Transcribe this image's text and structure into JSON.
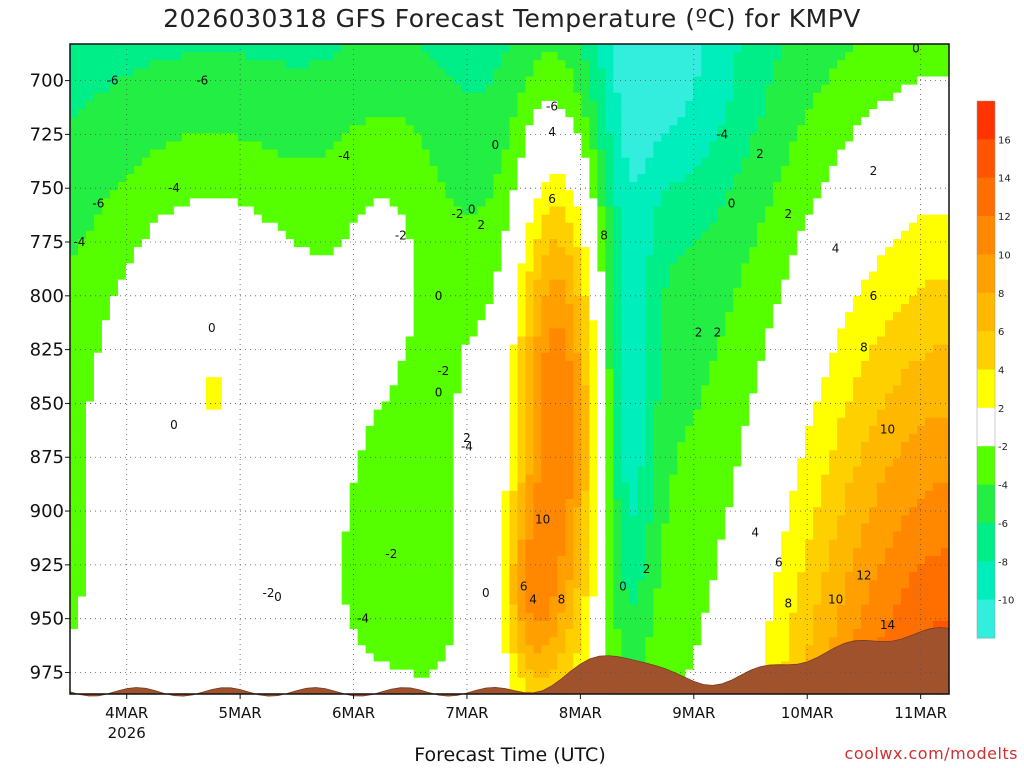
{
  "header": {
    "title": "2026030318 GFS Forecast Temperature (ºC) for KMPV",
    "credit": "coolwx.com/modelts"
  },
  "chart_data": {
    "type": "heatmap",
    "title": "2026030318 GFS Forecast Temperature (ºC) for KMPV",
    "xlabel": "Forecast Time (UTC)",
    "ylabel": "",
    "y_axis": {
      "unit": "hPa",
      "ticks": [
        700,
        725,
        750,
        775,
        800,
        825,
        850,
        875,
        900,
        925,
        950,
        975
      ],
      "range": [
        683,
        985
      ],
      "inverted": true
    },
    "x_axis": {
      "ticks": [
        "4MAR",
        "5MAR",
        "6MAR",
        "7MAR",
        "8MAR",
        "9MAR",
        "10MAR",
        "11MAR"
      ],
      "sublabel": "2026",
      "range_hours": [
        0,
        186
      ]
    },
    "grid": true,
    "colorbar": {
      "position": "right",
      "labels": [
        "16",
        "14",
        "12",
        "10",
        "8",
        "6",
        "4",
        "2",
        "-2",
        "-4",
        "-6",
        "-8",
        "-10"
      ],
      "bands": [
        {
          "min": 16,
          "max": 18,
          "color": "#ff3300"
        },
        {
          "min": 14,
          "max": 16,
          "color": "#ff5500"
        },
        {
          "min": 12,
          "max": 14,
          "color": "#ff6f00"
        },
        {
          "min": 10,
          "max": 12,
          "color": "#ff8800"
        },
        {
          "min": 8,
          "max": 10,
          "color": "#ffa000"
        },
        {
          "min": 6,
          "max": 8,
          "color": "#ffb800"
        },
        {
          "min": 4,
          "max": 6,
          "color": "#ffd000"
        },
        {
          "min": 2,
          "max": 4,
          "color": "#ffff00"
        },
        {
          "min": -2,
          "max": 2,
          "color": "#ffffff"
        },
        {
          "min": -4,
          "max": -2,
          "color": "#55ff00"
        },
        {
          "min": -6,
          "max": -4,
          "color": "#22ee44"
        },
        {
          "min": -8,
          "max": -6,
          "color": "#00ee88"
        },
        {
          "min": -10,
          "max": -8,
          "color": "#00eebb"
        },
        {
          "min": -12,
          "max": -10,
          "color": "#33eedd"
        }
      ]
    },
    "contour_labels": [
      {
        "v": "-6",
        "t": 9,
        "p": 700
      },
      {
        "v": "-6",
        "t": 28,
        "p": 700
      },
      {
        "v": "-6",
        "t": 102,
        "p": 712
      },
      {
        "v": "-6",
        "t": 6,
        "p": 757
      },
      {
        "v": "-4",
        "t": 58,
        "p": 735
      },
      {
        "v": "-4",
        "t": 22,
        "p": 750
      },
      {
        "v": "-4",
        "t": 2,
        "p": 775
      },
      {
        "v": "-4",
        "t": 138,
        "p": 725
      },
      {
        "v": "-4",
        "t": 84,
        "p": 870
      },
      {
        "v": "-4",
        "t": 62,
        "p": 950
      },
      {
        "v": "-2",
        "t": 70,
        "p": 772
      },
      {
        "v": "-2",
        "t": 82,
        "p": 762
      },
      {
        "v": "-2",
        "t": 79,
        "p": 835
      },
      {
        "v": "-2",
        "t": 68,
        "p": 920
      },
      {
        "v": "-2",
        "t": 42,
        "p": 938
      },
      {
        "v": "0",
        "t": 30,
        "p": 815
      },
      {
        "v": "0",
        "t": 22,
        "p": 860
      },
      {
        "v": "0",
        "t": 78,
        "p": 845
      },
      {
        "v": "0",
        "t": 78,
        "p": 800
      },
      {
        "v": "0",
        "t": 85,
        "p": 760
      },
      {
        "v": "0",
        "t": 44,
        "p": 940
      },
      {
        "v": "0",
        "t": 90,
        "p": 730
      },
      {
        "v": "0",
        "t": 140,
        "p": 757
      },
      {
        "v": "0",
        "t": 179,
        "p": 685
      },
      {
        "v": "0",
        "t": 117,
        "p": 935
      },
      {
        "v": "0",
        "t": 88,
        "p": 938
      },
      {
        "v": "2",
        "t": 87,
        "p": 767
      },
      {
        "v": "2",
        "t": 84,
        "p": 866
      },
      {
        "v": "2",
        "t": 137,
        "p": 817
      },
      {
        "v": "2",
        "t": 133,
        "p": 817
      },
      {
        "v": "2",
        "t": 146,
        "p": 734
      },
      {
        "v": "2",
        "t": 152,
        "p": 762
      },
      {
        "v": "2",
        "t": 170,
        "p": 742
      },
      {
        "v": "2",
        "t": 122,
        "p": 927
      },
      {
        "v": "4",
        "t": 102,
        "p": 724
      },
      {
        "v": "4",
        "t": 98,
        "p": 941
      },
      {
        "v": "4",
        "t": 162,
        "p": 778
      },
      {
        "v": "4",
        "t": 145,
        "p": 910
      },
      {
        "v": "6",
        "t": 102,
        "p": 755
      },
      {
        "v": "6",
        "t": 96,
        "p": 935
      },
      {
        "v": "6",
        "t": 170,
        "p": 800
      },
      {
        "v": "6",
        "t": 150,
        "p": 924
      },
      {
        "v": "8",
        "t": 113,
        "p": 772
      },
      {
        "v": "8",
        "t": 104,
        "p": 941
      },
      {
        "v": "8",
        "t": 168,
        "p": 824
      },
      {
        "v": "8",
        "t": 152,
        "p": 943
      },
      {
        "v": "10",
        "t": 100,
        "p": 904
      },
      {
        "v": "10",
        "t": 162,
        "p": 941
      },
      {
        "v": "10",
        "t": 173,
        "p": 862
      },
      {
        "v": "12",
        "t": 168,
        "p": 930
      },
      {
        "v": "14",
        "t": 173,
        "p": 953
      }
    ]
  }
}
